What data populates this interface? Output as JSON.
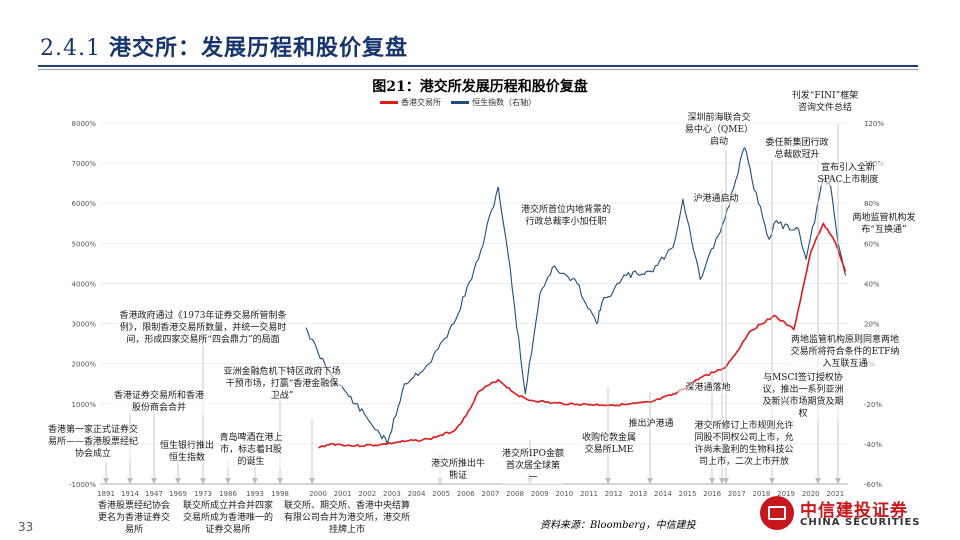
{
  "header": {
    "section_number": "2.4.1",
    "section_title": "港交所：发展历程和股价复盘"
  },
  "figure_title": "图21：港交所发展历程和股价复盘",
  "source": "资料来源：Bloomberg，中信建投",
  "page_number": "33",
  "logo": {
    "cn": "中信建投证券",
    "en": "CHINA SECURITIES"
  },
  "colors": {
    "hkex": "#e0191c",
    "hsi": "#1f4e79",
    "accent": "#16356f"
  },
  "annotations": [
    "刊发“FINI”框架咨询文件总结",
    "深圳前海联合交易中心（QME）启动",
    "委任新集团行政总裁欧冠升",
    "宣布引入全新SPAC上市制度",
    "沪港通启动",
    "两地监管机构发布“互换通”",
    "港交所首位内地背景的行政总裁李小加任职",
    "两地监管机构原则同意两地交易所将符合条件的ETF纳入互联互通",
    "香港政府通过《1973年证券交易所管制条例》，限制香港交易所数量，并统一交易时间，形成四家交易所“四会鼎力”的局面",
    "与MSCI签订授权协议，推出一系列亚洲及新兴市场期货及期权",
    "亚洲金融危机下特区政府下场干预市场，打赢“香港金融保卫战”",
    "深港通落地",
    "香港证券交易所和香港股份商会合并",
    "推出沪港通",
    "香港第一家正式证券交易所——香港股票经纪协会成立",
    "恒生银行推出恒生指数",
    "青岛啤酒在港上市，标志着H股的诞生",
    "港交所推出牛熊证",
    "港交所IPO金额首次居全球第一",
    "收购伦敦金属交易所LME",
    "港交所修订上市规则允许同股不同权公司上市，允许尚未盈利的生物科技公司上市，二次上市开放",
    "香港股票经纪协会更名为香港证券交易所",
    "联交所成立并合并四家交易所成为香港唯一的证券交易所",
    "联交所、期交所、香港中央结算有限公司合并为港交所，港交所挂牌上市"
  ],
  "chart_data": {
    "type": "line",
    "legend_position": "top",
    "x_ticks": [
      "1891",
      "1914",
      "1947",
      "1969",
      "1973",
      "1986",
      "1993",
      "1998",
      "2000",
      "2001",
      "2002",
      "2003",
      "2004",
      "2005",
      "2006",
      "2007",
      "2008",
      "2009",
      "2010",
      "2011",
      "2012",
      "2013",
      "2014",
      "2015",
      "2016",
      "2017",
      "2018",
      "2019",
      "2020",
      "2021"
    ],
    "y_left": {
      "range": [
        -1000,
        8000
      ],
      "ticks": [
        "-1000%",
        "0%",
        "1000%",
        "2000%",
        "3000%",
        "4000%",
        "5000%",
        "6000%",
        "7000%",
        "8000%"
      ]
    },
    "y_right": {
      "range": [
        -60,
        120
      ],
      "ticks": [
        "-60%",
        "-40%",
        "-20%",
        "0%",
        "20%",
        "40%",
        "60%",
        "80%",
        "100%",
        "120%"
      ]
    },
    "series": [
      {
        "name": "香港交易所",
        "axis": "left",
        "color": "#e0191c",
        "x": [
          2000.5,
          2001,
          2002,
          2003,
          2004,
          2005,
          2006,
          2006.5,
          2007,
          2007.8,
          2008.5,
          2009,
          2010,
          2011,
          2012,
          2013,
          2014,
          2015,
          2015.5,
          2016,
          2017,
          2017.5,
          2018,
          2019,
          2019.8,
          2020.5,
          2021,
          2021.5,
          2021.9
        ],
        "y": [
          -100,
          0,
          -50,
          -20,
          60,
          120,
          320,
          700,
          1300,
          1600,
          1250,
          1100,
          1020,
          990,
          970,
          980,
          1040,
          1250,
          1450,
          1650,
          1900,
          2300,
          2800,
          3200,
          2850,
          4800,
          5500,
          5000,
          4300
        ]
      },
      {
        "name": "恒生指数（右轴）",
        "axis": "right",
        "color": "#1f4e79",
        "x": [
          2000,
          2000.5,
          2001,
          2002,
          2003,
          2003.3,
          2004,
          2005,
          2006,
          2007,
          2007.8,
          2008.2,
          2008.9,
          2009.5,
          2010,
          2011,
          2011.8,
          2012,
          2013,
          2014,
          2014.9,
          2015.3,
          2016,
          2017,
          2017.8,
          2018.1,
          2018.8,
          2019,
          2020,
          2020.3,
          2021,
          2021.3,
          2021.6,
          2021.9
        ],
        "y": [
          18,
          5,
          -5,
          -20,
          -35,
          -40,
          -10,
          0,
          20,
          52,
          88,
          55,
          -15,
          35,
          48,
          40,
          20,
          30,
          44,
          46,
          58,
          82,
          42,
          72,
          108,
          92,
          62,
          70,
          67,
          52,
          92,
          88,
          60,
          44
        ]
      }
    ]
  }
}
